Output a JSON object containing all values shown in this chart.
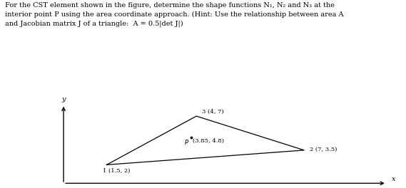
{
  "title_text": "For the CST element shown in the figure, determine the shape functions N₁, N₂ and N₃ at the\ninterior point P using the area coordinate approach. (Hint: Use the relationship between area A\nand Jacobian matrix J of a triangle:  A = 0.5|det J|)",
  "nodes": {
    "1": [
      1.5,
      2
    ],
    "2": [
      7,
      3.5
    ],
    "3": [
      4,
      7
    ]
  },
  "node_labels": {
    "1": "1 (1.5, 2)",
    "2": "2 (7, 3.5)",
    "3": "3 (4, 7)"
  },
  "point_P": [
    3.85,
    4.8
  ],
  "point_P_label": "P (3.85, 4.8)",
  "bg_color": "#ffffff",
  "line_color": "#000000",
  "text_color": "#000000",
  "axis_xlim": [
    0,
    9.5
  ],
  "axis_ylim": [
    0,
    8.5
  ],
  "figsize": [
    5.69,
    2.64
  ],
  "dpi": 100
}
